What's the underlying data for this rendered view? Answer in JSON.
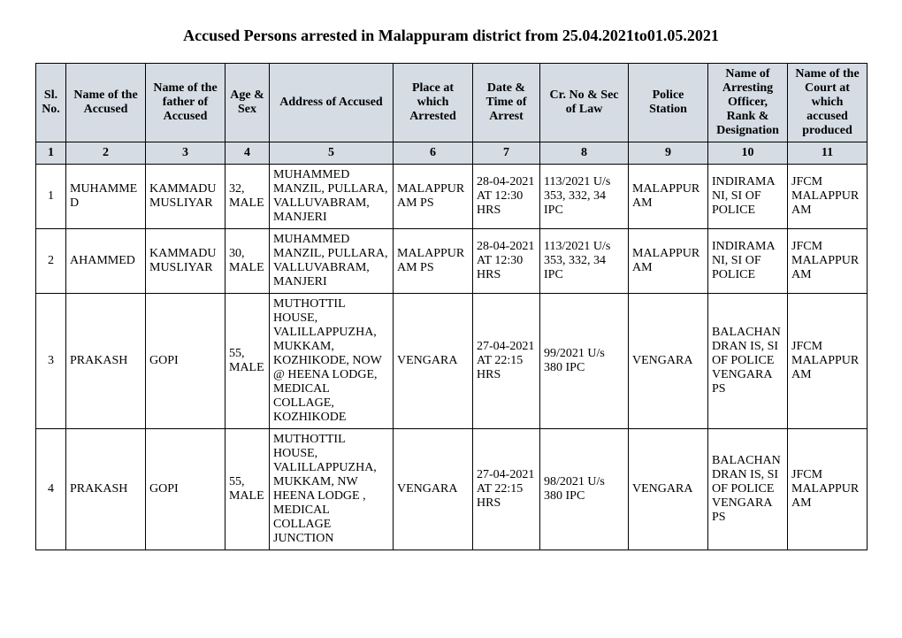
{
  "title": "Accused Persons arrested in   Malappuram  district from   25.04.2021to01.05.2021",
  "headers": [
    "Sl. No.",
    "Name of the Accused",
    "Name of the father of Accused",
    "Age & Sex",
    "Address of Accused",
    "Place at which Arrested",
    "Date & Time of Arrest",
    "Cr. No & Sec of Law",
    "Police Station",
    "Name of Arresting Officer, Rank & Designation",
    "Name of the Court at which accused produced"
  ],
  "colnums": [
    "1",
    "2",
    "3",
    "4",
    "5",
    "6",
    "7",
    "8",
    "9",
    "10",
    "11"
  ],
  "rows": [
    {
      "sl": "1",
      "name": "MUHAMMED",
      "father": "KAMMADU MUSLIYAR",
      "age": "32, MALE",
      "address": "MUHAMMED MANZIL, PULLARA, VALLUVABRAM, MANJERI",
      "place": "MALAPPURAM PS",
      "datetime": "28-04-2021 AT 12:30 HRS",
      "crno": "113/2021 U/s 353, 332, 34 IPC",
      "ps": "MALAPPURAM",
      "officer": "INDIRAMANI, SI OF POLICE",
      "court": "JFCM MALAPPURAM"
    },
    {
      "sl": "2",
      "name": "AHAMMED",
      "father": "KAMMADU MUSLIYAR",
      "age": "30, MALE",
      "address": "MUHAMMED MANZIL, PULLARA, VALLUVABRAM, MANJERI",
      "place": "MALAPPURAM PS",
      "datetime": "28-04-2021 AT 12:30 HRS",
      "crno": "113/2021 U/s 353, 332, 34 IPC",
      "ps": "MALAPPURAM",
      "officer": "INDIRAMANI, SI OF POLICE",
      "court": "JFCM MALAPPURAM"
    },
    {
      "sl": "3",
      "name": "PRAKASH",
      "father": "GOPI",
      "age": "55, MALE",
      "address": "MUTHOTTIL HOUSE, VALILLAPPUZHA, MUKKAM, KOZHIKODE, NOW @ HEENA LODGE, MEDICAL COLLAGE, KOZHIKODE",
      "place": "VENGARA",
      "datetime": "27-04-2021 AT 22:15 HRS",
      "crno": "99/2021 U/s 380 IPC",
      "ps": "VENGARA",
      "officer": "BALACHANDRAN IS, SI OF POLICE VENGARA PS",
      "court": "JFCM MALAPPURAM"
    },
    {
      "sl": "4",
      "name": "PRAKASH",
      "father": "GOPI",
      "age": "55, MALE",
      "address": "MUTHOTTIL HOUSE, VALILLAPPUZHA, MUKKAM, NW HEENA LODGE , MEDICAL COLLAGE JUNCTION",
      "place": "VENGARA",
      "datetime": "27-04-2021 AT 22:15 HRS",
      "crno": "98/2021 U/s 380 IPC",
      "ps": "VENGARA",
      "officer": "BALACHANDRAN IS, SI OF POLICE VENGARA PS",
      "court": "JFCM MALAPPURAM"
    }
  ],
  "style": {
    "header_bg": "#d5dce4",
    "border_color": "#000000",
    "font_family": "Times New Roman",
    "title_fontsize": 18,
    "cell_fontsize": 14
  }
}
